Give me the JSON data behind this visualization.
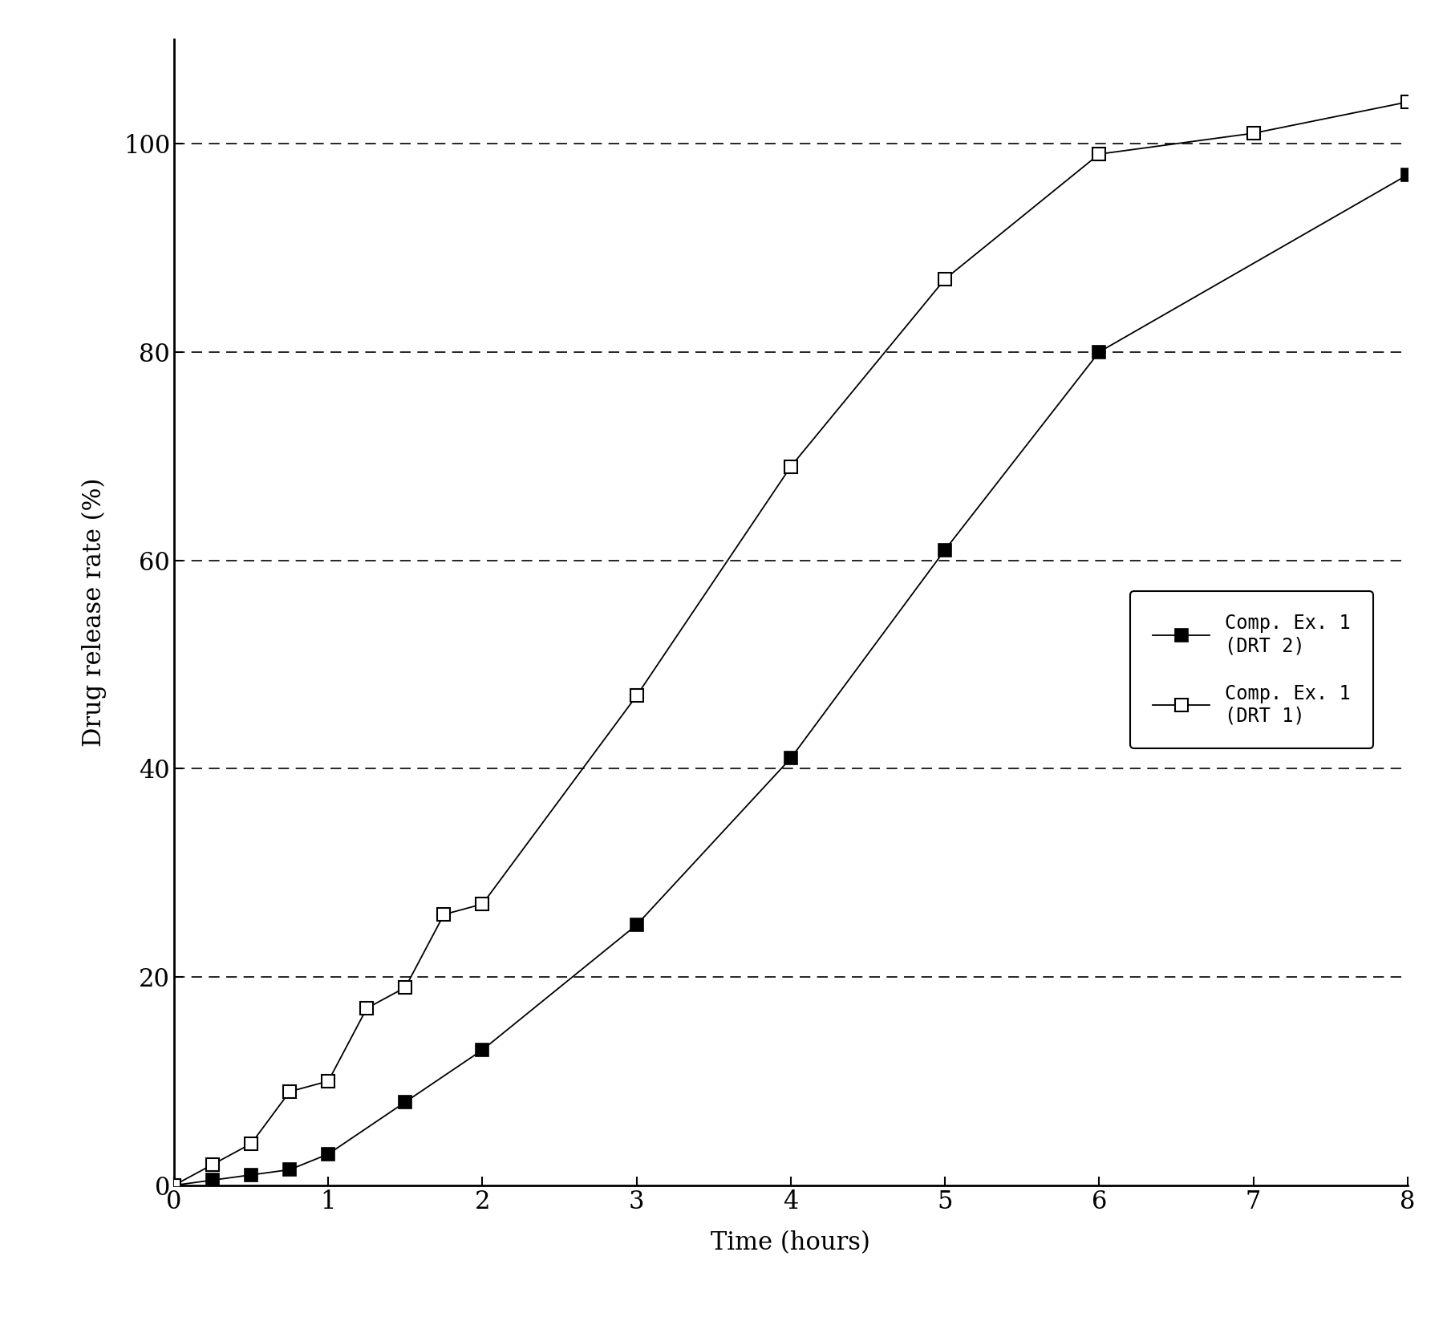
{
  "series1_label": "Comp. Ex. 1\n(DRT 2)",
  "series2_label": "Comp. Ex. 1\n(DRT 1)",
  "series1_x": [
    0,
    0.25,
    0.5,
    0.75,
    1.0,
    1.5,
    2.0,
    3.0,
    4.0,
    5.0,
    6.0,
    8.0
  ],
  "series1_y": [
    0,
    0.5,
    1.0,
    1.5,
    3.0,
    8.0,
    13.0,
    25.0,
    41.0,
    61.0,
    80.0,
    97.0
  ],
  "series2_x": [
    0,
    0.25,
    0.5,
    0.75,
    1.0,
    1.25,
    1.5,
    1.75,
    2.0,
    3.0,
    4.0,
    5.0,
    6.0,
    7.0,
    8.0
  ],
  "series2_y": [
    0,
    2.0,
    4.0,
    9.0,
    10.0,
    17.0,
    19.0,
    26.0,
    27.0,
    47.0,
    69.0,
    87.0,
    99.0,
    101.0,
    104.0
  ],
  "xlabel": "Time (hours)",
  "ylabel": "Drug release rate (%)",
  "xlim": [
    0,
    8
  ],
  "ylim": [
    0,
    110
  ],
  "xticks": [
    0,
    1,
    2,
    3,
    4,
    5,
    6,
    7,
    8
  ],
  "yticks": [
    0,
    20,
    40,
    60,
    80,
    100
  ],
  "grid_y": [
    20,
    40,
    60,
    80,
    100
  ],
  "background_color": "#ffffff",
  "line_color": "#000000",
  "marker_size": 11,
  "legend_font_size": 17,
  "label_font_size": 22,
  "tick_font_size": 22
}
